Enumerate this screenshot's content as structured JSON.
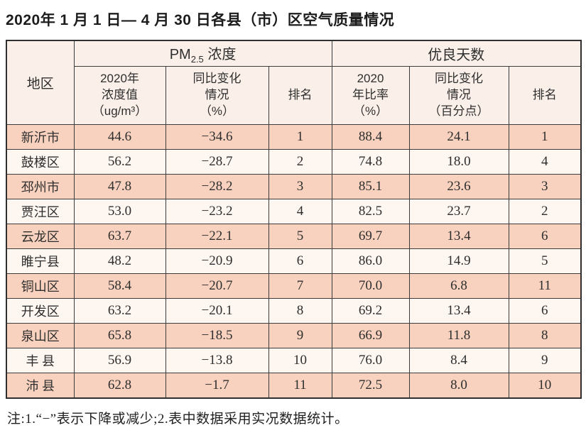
{
  "title": "2020年 1 月 1 日— 4 月 30 日各县（市）区空气质量情况",
  "table": {
    "region_header": "地区",
    "group_pm25": {
      "prefix": "PM",
      "sub": "2.5",
      "suffix": " 浓度"
    },
    "group_good_days": "优良天数",
    "sub_headers": {
      "pm_value": "2020年\n浓度值\n（ug/m³）",
      "pm_change": "同比变化\n情况\n（%）",
      "pm_rank": "排名",
      "good_ratio": "2020\n年比率\n（%）",
      "good_change": "同比变化\n情况\n（百分点）",
      "good_rank": "排名"
    },
    "rows": [
      {
        "region": "新沂市",
        "pm_value": "44.6",
        "pm_change": "−34.6",
        "pm_rank": "1",
        "good_ratio": "88.4",
        "good_change": "24.1",
        "good_rank": "1"
      },
      {
        "region": "鼓楼区",
        "pm_value": "56.2",
        "pm_change": "−28.7",
        "pm_rank": "2",
        "good_ratio": "74.8",
        "good_change": "18.0",
        "good_rank": "4"
      },
      {
        "region": "邳州市",
        "pm_value": "47.8",
        "pm_change": "−28.2",
        "pm_rank": "3",
        "good_ratio": "85.1",
        "good_change": "23.6",
        "good_rank": "3"
      },
      {
        "region": "贾汪区",
        "pm_value": "53.0",
        "pm_change": "−23.2",
        "pm_rank": "4",
        "good_ratio": "82.5",
        "good_change": "23.7",
        "good_rank": "2"
      },
      {
        "region": "云龙区",
        "pm_value": "63.7",
        "pm_change": "−22.1",
        "pm_rank": "5",
        "good_ratio": "69.7",
        "good_change": "13.4",
        "good_rank": "6"
      },
      {
        "region": "睢宁县",
        "pm_value": "48.2",
        "pm_change": "−20.9",
        "pm_rank": "6",
        "good_ratio": "86.0",
        "good_change": "14.9",
        "good_rank": "5"
      },
      {
        "region": "铜山区",
        "pm_value": "58.4",
        "pm_change": "−20.7",
        "pm_rank": "7",
        "good_ratio": "70.0",
        "good_change": "6.8",
        "good_rank": "11"
      },
      {
        "region": "开发区",
        "pm_value": "63.2",
        "pm_change": "−20.1",
        "pm_rank": "8",
        "good_ratio": "69.2",
        "good_change": "13.4",
        "good_rank": "6"
      },
      {
        "region": "泉山区",
        "pm_value": "65.8",
        "pm_change": "−18.5",
        "pm_rank": "9",
        "good_ratio": "66.9",
        "good_change": "11.8",
        "good_rank": "8"
      },
      {
        "region": "丰 县",
        "pm_value": "56.9",
        "pm_change": "−13.8",
        "pm_rank": "10",
        "good_ratio": "76.0",
        "good_change": "8.4",
        "good_rank": "9"
      },
      {
        "region": "沛 县",
        "pm_value": "62.8",
        "pm_change": "−1.7",
        "pm_rank": "11",
        "good_ratio": "72.5",
        "good_change": "8.0",
        "good_rank": "10"
      }
    ]
  },
  "note": "注:1.“−”表示下降或减少;2.表中数据采用实况数据统计。",
  "colors": {
    "row_pink": "#f8d2be",
    "row_light": "#fdf6f1",
    "header_bg": "#fbf0e9",
    "border": "#3c3c3c",
    "text": "#2e2e2e"
  }
}
